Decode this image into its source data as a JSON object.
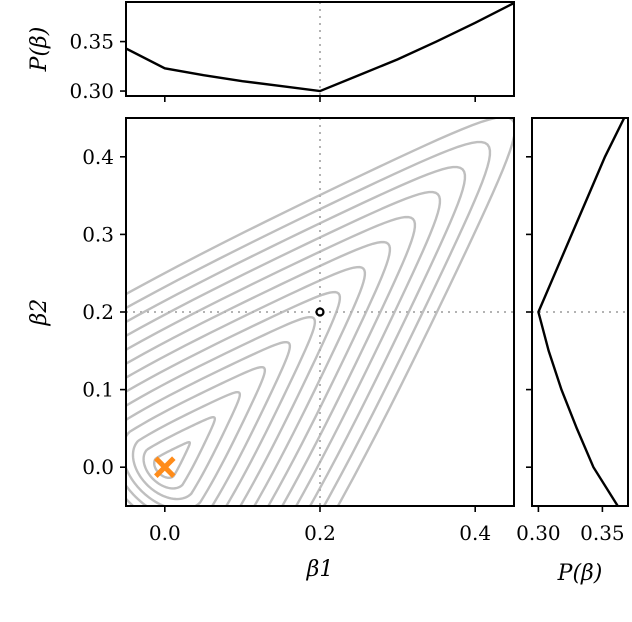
{
  "chart_data": [
    {
      "type": "contour",
      "panel": "main",
      "xlabel": "β1",
      "ylabel": "β2",
      "xlim": [
        -0.05,
        0.45
      ],
      "ylim": [
        -0.05,
        0.45
      ],
      "xticks": [
        0.0,
        0.2,
        0.4
      ],
      "xtick_labels": [
        "0.0",
        "0.2",
        "0.4"
      ],
      "yticks": [
        0.0,
        0.1,
        0.2,
        0.3,
        0.4
      ],
      "ytick_labels": [
        "0.0",
        "0.1",
        "0.2",
        "0.3",
        "0.4"
      ],
      "grid": false,
      "guides": {
        "x": 0.2,
        "y": 0.2
      },
      "contour_levels": [
        0.05,
        0.1,
        0.15,
        0.2,
        0.25,
        0.3,
        0.35,
        0.4,
        0.45,
        0.5,
        0.55,
        0.6,
        0.65,
        0.7
      ],
      "contour_color": "#bfbfbf",
      "markers": [
        {
          "label": "true",
          "x": 0.2,
          "y": 0.2,
          "shape": "circle",
          "color": "#000000"
        },
        {
          "label": "estimate",
          "x": 0.0,
          "y": 0.0,
          "shape": "x",
          "color": "#ff8c1a"
        }
      ]
    },
    {
      "type": "line",
      "panel": "top",
      "ylabel": "P(β)",
      "xlim": [
        -0.05,
        0.45
      ],
      "ylim": [
        0.295,
        0.39
      ],
      "yticks": [
        0.3,
        0.35
      ],
      "ytick_labels": [
        "0.30",
        "0.35"
      ],
      "guide_x": 0.2,
      "x": [
        -0.05,
        0.0,
        0.05,
        0.1,
        0.15,
        0.2,
        0.25,
        0.3,
        0.35,
        0.4,
        0.45
      ],
      "y": [
        0.343,
        0.323,
        0.316,
        0.31,
        0.305,
        0.3,
        0.316,
        0.332,
        0.35,
        0.369,
        0.389
      ]
    },
    {
      "type": "line",
      "panel": "right",
      "xlabel": "P(β)",
      "xlim": [
        0.295,
        0.37
      ],
      "xticks": [
        0.3,
        0.35
      ],
      "xtick_labels": [
        "0.30",
        "0.35"
      ],
      "guide_y": 0.2,
      "y": [
        -0.05,
        0.0,
        0.05,
        0.1,
        0.15,
        0.2,
        0.25,
        0.3,
        0.35,
        0.4,
        0.45
      ],
      "x": [
        0.362,
        0.343,
        0.33,
        0.318,
        0.308,
        0.3,
        0.313,
        0.326,
        0.339,
        0.352,
        0.367
      ]
    }
  ]
}
